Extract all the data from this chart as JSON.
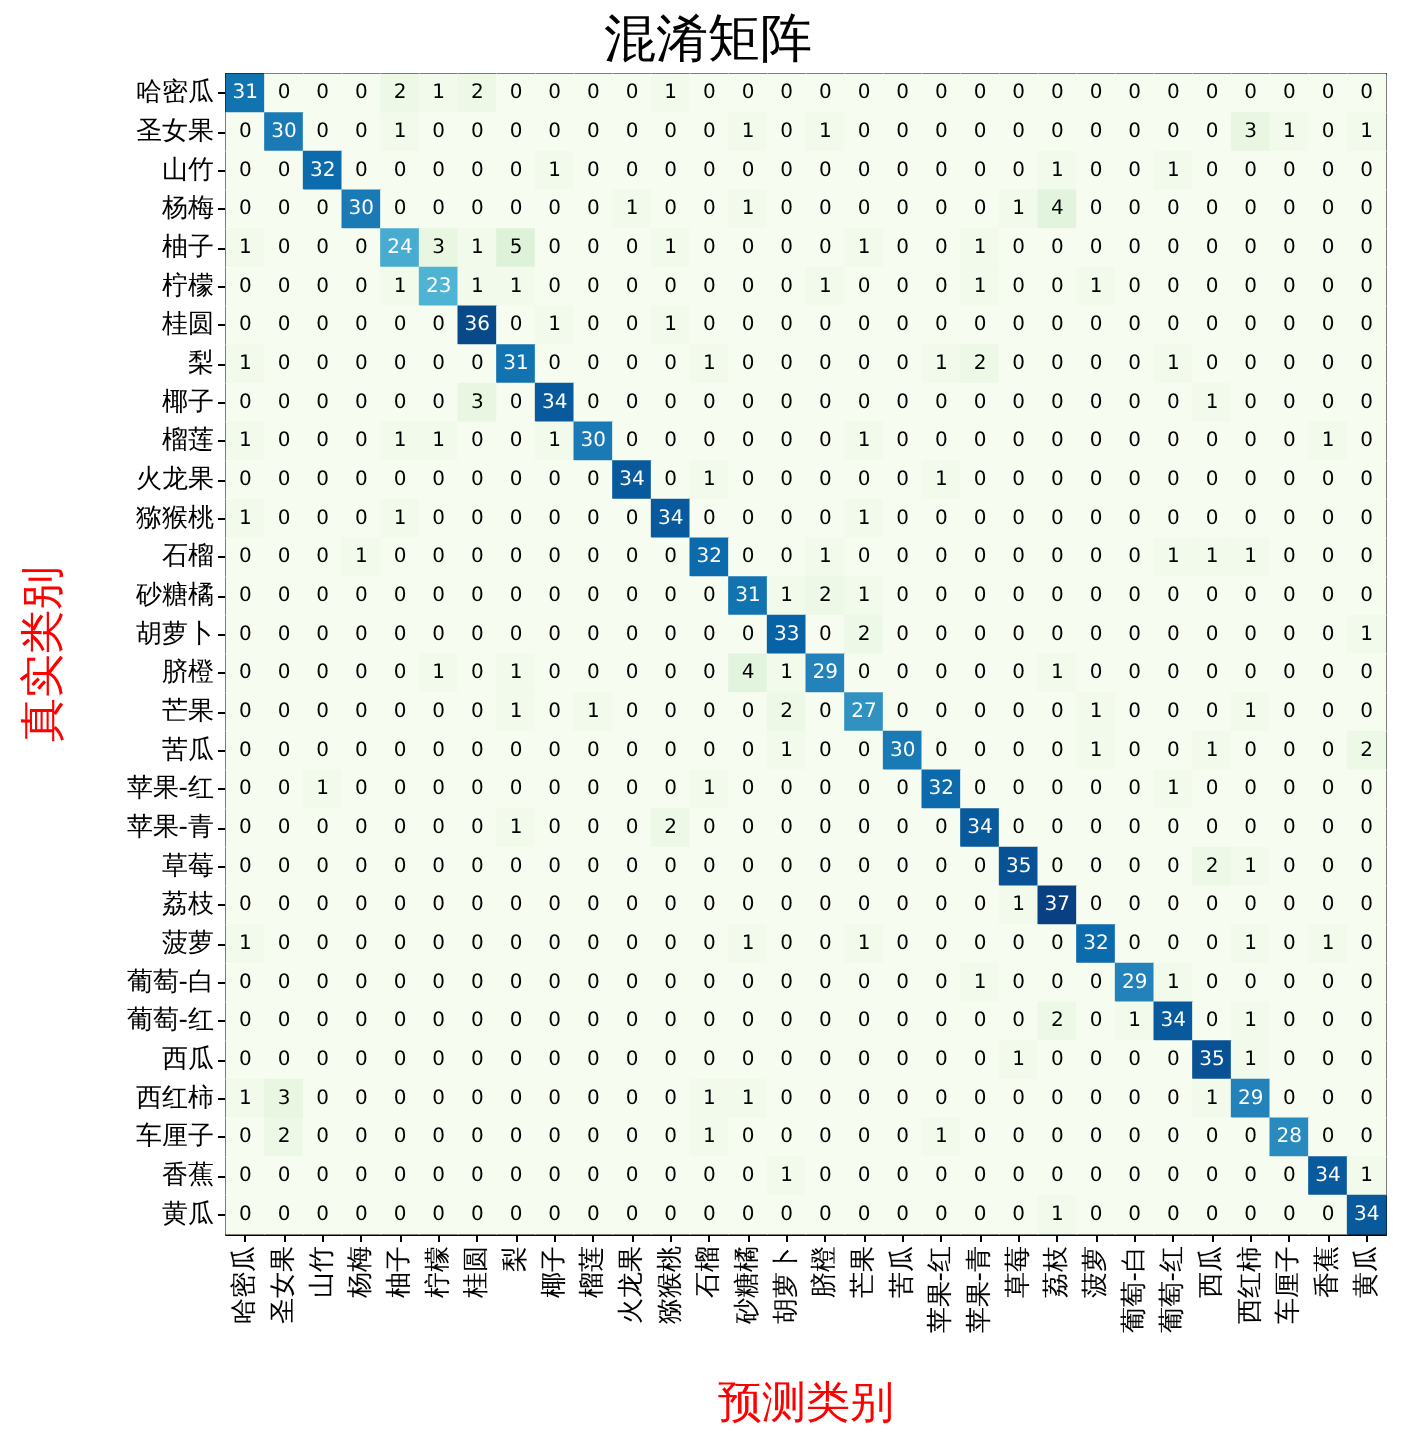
{
  "chart_data": {
    "type": "heatmap",
    "title": "混淆矩阵",
    "xlabel": "预测类别",
    "ylabel": "真实类别",
    "data_labels": true,
    "categories": [
      "哈密瓜",
      "圣女果",
      "山竹",
      "杨梅",
      "柚子",
      "柠檬",
      "桂圆",
      "梨",
      "椰子",
      "榴莲",
      "火龙果",
      "猕猴桃",
      "石榴",
      "砂糖橘",
      "胡萝卜",
      "脐橙",
      "芒果",
      "苦瓜",
      "苹果-红",
      "苹果-青",
      "草莓",
      "荔枝",
      "菠萝",
      "葡萄-白",
      "葡萄-红",
      "西瓜",
      "西红柿",
      "车厘子",
      "香蕉",
      "黄瓜"
    ],
    "y_categories": [
      "哈密瓜",
      "圣女果",
      "山竹",
      "杨梅",
      "柚子",
      "柠檬",
      "桂圆",
      "梨",
      "椰子",
      "榴莲",
      "火龙果",
      "猕猴桃",
      "石榴",
      "砂糖橘",
      "胡萝卜",
      "脐橙",
      "芒果",
      "苦瓜",
      "苹果-红",
      "苹果-青",
      "草莓",
      "荔枝",
      "菠萝",
      "葡萄-白",
      "葡萄-红",
      "西瓜",
      "西红柿",
      "车厘子",
      "香蕉",
      "黄瓜"
    ],
    "cells": [
      [
        31,
        0,
        0,
        0,
        2,
        1,
        2,
        0,
        0,
        0,
        0,
        1,
        0,
        0,
        0,
        0,
        0,
        0,
        0,
        0,
        0,
        0,
        0,
        0,
        0,
        0,
        0,
        0,
        0,
        0
      ],
      [
        0,
        30,
        0,
        0,
        1,
        0,
        0,
        0,
        0,
        0,
        0,
        0,
        0,
        1,
        0,
        1,
        0,
        0,
        0,
        0,
        0,
        0,
        0,
        0,
        0,
        0,
        3,
        1,
        0,
        1
      ],
      [
        0,
        0,
        32,
        0,
        0,
        0,
        0,
        0,
        1,
        0,
        0,
        0,
        0,
        0,
        0,
        0,
        0,
        0,
        0,
        0,
        0,
        1,
        0,
        0,
        1,
        0,
        0,
        0,
        0,
        0
      ],
      [
        0,
        0,
        0,
        30,
        0,
        0,
        0,
        0,
        0,
        0,
        1,
        0,
        0,
        1,
        0,
        0,
        0,
        0,
        0,
        0,
        1,
        4,
        0,
        0,
        0,
        0,
        0,
        0,
        0,
        0
      ],
      [
        1,
        0,
        0,
        0,
        24,
        3,
        1,
        5,
        0,
        0,
        0,
        1,
        0,
        0,
        0,
        0,
        1,
        0,
        0,
        1,
        0,
        0,
        0,
        0,
        0,
        0,
        0,
        0,
        0,
        0
      ],
      [
        0,
        0,
        0,
        0,
        1,
        23,
        1,
        1,
        0,
        0,
        0,
        0,
        0,
        0,
        0,
        1,
        0,
        0,
        0,
        1,
        0,
        0,
        1,
        0,
        0,
        0,
        0,
        0,
        0,
        0
      ],
      [
        0,
        0,
        0,
        0,
        0,
        0,
        36,
        0,
        1,
        0,
        0,
        1,
        0,
        0,
        0,
        0,
        0,
        0,
        0,
        0,
        0,
        0,
        0,
        0,
        0,
        0,
        0,
        0,
        0,
        0
      ],
      [
        1,
        0,
        0,
        0,
        0,
        0,
        0,
        31,
        0,
        0,
        0,
        0,
        1,
        0,
        0,
        0,
        0,
        0,
        1,
        2,
        0,
        0,
        0,
        0,
        1,
        0,
        0,
        0,
        0,
        0
      ],
      [
        0,
        0,
        0,
        0,
        0,
        0,
        3,
        0,
        34,
        0,
        0,
        0,
        0,
        0,
        0,
        0,
        0,
        0,
        0,
        0,
        0,
        0,
        0,
        0,
        0,
        1,
        0,
        0,
        0,
        0
      ],
      [
        1,
        0,
        0,
        0,
        1,
        1,
        0,
        0,
        1,
        30,
        0,
        0,
        0,
        0,
        0,
        0,
        1,
        0,
        0,
        0,
        0,
        0,
        0,
        0,
        0,
        0,
        0,
        0,
        1,
        0
      ],
      [
        0,
        0,
        0,
        0,
        0,
        0,
        0,
        0,
        0,
        0,
        34,
        0,
        1,
        0,
        0,
        0,
        0,
        0,
        1,
        0,
        0,
        0,
        0,
        0,
        0,
        0,
        0,
        0,
        0,
        0
      ],
      [
        1,
        0,
        0,
        0,
        1,
        0,
        0,
        0,
        0,
        0,
        0,
        34,
        0,
        0,
        0,
        0,
        1,
        0,
        0,
        0,
        0,
        0,
        0,
        0,
        0,
        0,
        0,
        0,
        0,
        0
      ],
      [
        0,
        0,
        0,
        1,
        0,
        0,
        0,
        0,
        0,
        0,
        0,
        0,
        32,
        0,
        0,
        1,
        0,
        0,
        0,
        0,
        0,
        0,
        0,
        0,
        1,
        1,
        1,
        0,
        0,
        0
      ],
      [
        0,
        0,
        0,
        0,
        0,
        0,
        0,
        0,
        0,
        0,
        0,
        0,
        0,
        31,
        1,
        2,
        1,
        0,
        0,
        0,
        0,
        0,
        0,
        0,
        0,
        0,
        0,
        0,
        0,
        0
      ],
      [
        0,
        0,
        0,
        0,
        0,
        0,
        0,
        0,
        0,
        0,
        0,
        0,
        0,
        0,
        33,
        0,
        2,
        0,
        0,
        0,
        0,
        0,
        0,
        0,
        0,
        0,
        0,
        0,
        0,
        1
      ],
      [
        0,
        0,
        0,
        0,
        0,
        1,
        0,
        1,
        0,
        0,
        0,
        0,
        0,
        4,
        1,
        29,
        0,
        0,
        0,
        0,
        0,
        1,
        0,
        0,
        0,
        0,
        0,
        0,
        0,
        0
      ],
      [
        0,
        0,
        0,
        0,
        0,
        0,
        0,
        1,
        0,
        1,
        0,
        0,
        0,
        0,
        2,
        0,
        27,
        0,
        0,
        0,
        0,
        0,
        1,
        0,
        0,
        0,
        1,
        0,
        0,
        0
      ],
      [
        0,
        0,
        0,
        0,
        0,
        0,
        0,
        0,
        0,
        0,
        0,
        0,
        0,
        0,
        1,
        0,
        0,
        30,
        0,
        0,
        0,
        0,
        1,
        0,
        0,
        1,
        0,
        0,
        0,
        2
      ],
      [
        0,
        0,
        1,
        0,
        0,
        0,
        0,
        0,
        0,
        0,
        0,
        0,
        1,
        0,
        0,
        0,
        0,
        0,
        32,
        0,
        0,
        0,
        0,
        0,
        1,
        0,
        0,
        0,
        0,
        0
      ],
      [
        0,
        0,
        0,
        0,
        0,
        0,
        0,
        1,
        0,
        0,
        0,
        2,
        0,
        0,
        0,
        0,
        0,
        0,
        0,
        34,
        0,
        0,
        0,
        0,
        0,
        0,
        0,
        0,
        0,
        0
      ],
      [
        0,
        0,
        0,
        0,
        0,
        0,
        0,
        0,
        0,
        0,
        0,
        0,
        0,
        0,
        0,
        0,
        0,
        0,
        0,
        0,
        35,
        0,
        0,
        0,
        0,
        2,
        1,
        0,
        0,
        0
      ],
      [
        0,
        0,
        0,
        0,
        0,
        0,
        0,
        0,
        0,
        0,
        0,
        0,
        0,
        0,
        0,
        0,
        0,
        0,
        0,
        0,
        1,
        37,
        0,
        0,
        0,
        0,
        0,
        0,
        0,
        0
      ],
      [
        1,
        0,
        0,
        0,
        0,
        0,
        0,
        0,
        0,
        0,
        0,
        0,
        0,
        1,
        0,
        0,
        1,
        0,
        0,
        0,
        0,
        0,
        32,
        0,
        0,
        0,
        1,
        0,
        1,
        0
      ],
      [
        0,
        0,
        0,
        0,
        0,
        0,
        0,
        0,
        0,
        0,
        0,
        0,
        0,
        0,
        0,
        0,
        0,
        0,
        0,
        1,
        0,
        0,
        0,
        29,
        1,
        0,
        0,
        0,
        0,
        0
      ],
      [
        0,
        0,
        0,
        0,
        0,
        0,
        0,
        0,
        0,
        0,
        0,
        0,
        0,
        0,
        0,
        0,
        0,
        0,
        0,
        0,
        0,
        2,
        0,
        1,
        34,
        0,
        1,
        0,
        0,
        0
      ],
      [
        0,
        0,
        0,
        0,
        0,
        0,
        0,
        0,
        0,
        0,
        0,
        0,
        0,
        0,
        0,
        0,
        0,
        0,
        0,
        0,
        1,
        0,
        0,
        0,
        0,
        35,
        1,
        0,
        0,
        0
      ],
      [
        1,
        3,
        0,
        0,
        0,
        0,
        0,
        0,
        0,
        0,
        0,
        0,
        1,
        1,
        0,
        0,
        0,
        0,
        0,
        0,
        0,
        0,
        0,
        0,
        0,
        1,
        29,
        0,
        0,
        0
      ],
      [
        0,
        2,
        0,
        0,
        0,
        0,
        0,
        0,
        0,
        0,
        0,
        0,
        1,
        0,
        0,
        0,
        0,
        0,
        1,
        0,
        0,
        0,
        0,
        0,
        0,
        0,
        0,
        28,
        0,
        0
      ],
      [
        0,
        0,
        0,
        0,
        0,
        0,
        0,
        0,
        0,
        0,
        0,
        0,
        0,
        0,
        1,
        0,
        0,
        0,
        0,
        0,
        0,
        0,
        0,
        0,
        0,
        0,
        0,
        0,
        34,
        1
      ],
      [
        0,
        0,
        0,
        0,
        0,
        0,
        0,
        0,
        0,
        0,
        0,
        0,
        0,
        0,
        0,
        0,
        0,
        0,
        0,
        0,
        0,
        1,
        0,
        0,
        0,
        0,
        0,
        0,
        0,
        34
      ]
    ]
  }
}
